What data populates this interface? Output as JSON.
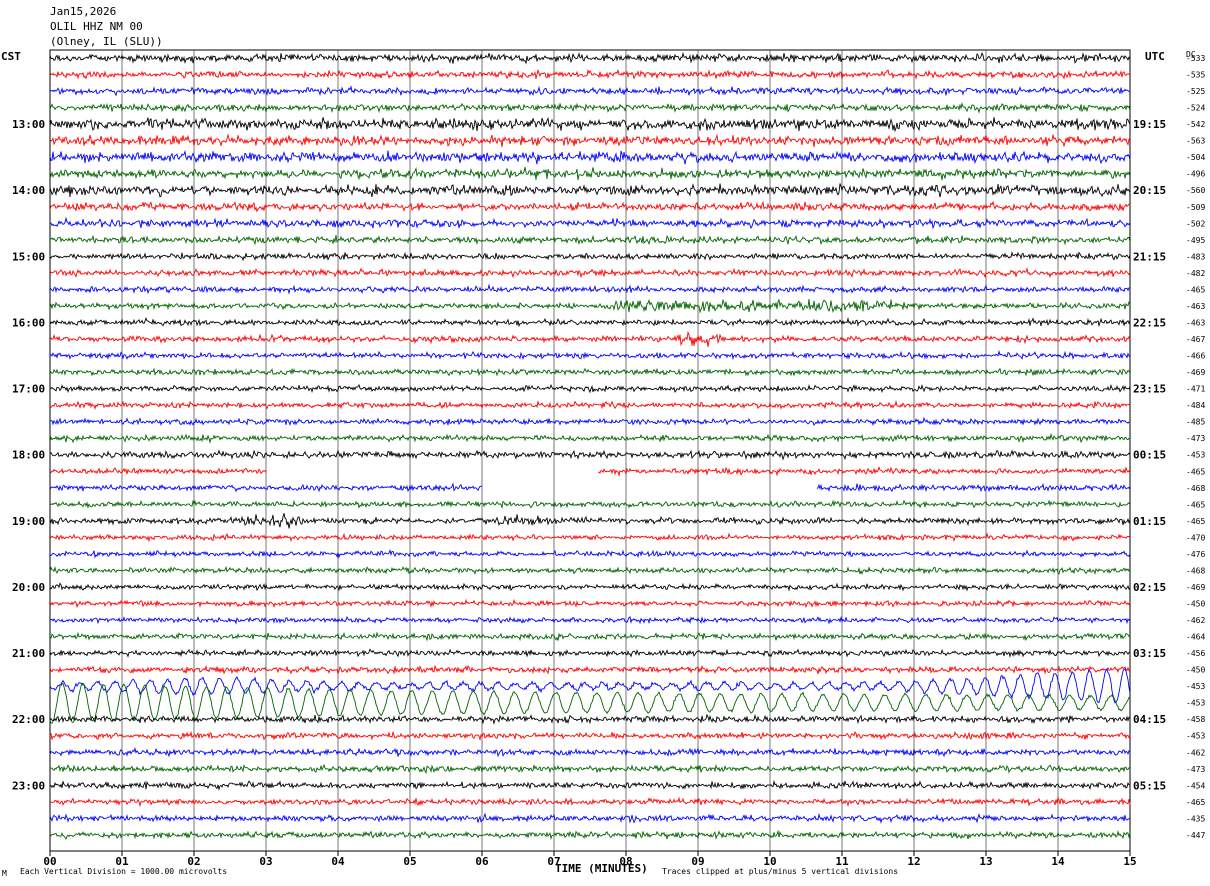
{
  "header": {
    "date": "Jan15,2026",
    "station": "OLIL HHZ NM 00",
    "location": "(Olney, IL (SLU))"
  },
  "left_tz": "CST",
  "right_tz": "UTC",
  "dc_label": "DC",
  "footer": {
    "scale_note": "Each Vertical Division = 1000.00 microvolts",
    "clip_note": "Traces clipped at plus/minus 5 vertical divisions",
    "corner_mark": "M"
  },
  "colors": {
    "cycle": [
      "#000000",
      "#ff0000",
      "#0000ff",
      "#006400"
    ],
    "grid": "#000000"
  },
  "chart_data": {
    "type": "line",
    "title": "",
    "xlabel": "TIME (MINUTES)",
    "x_ticks": [
      "00",
      "01",
      "02",
      "03",
      "04",
      "05",
      "06",
      "07",
      "08",
      "09",
      "10",
      "11",
      "12",
      "13",
      "14",
      "15"
    ],
    "xlim": [
      0,
      15
    ],
    "left_hour_labels": [
      "13:00",
      "14:00",
      "15:00",
      "16:00",
      "17:00",
      "18:00",
      "19:00",
      "20:00",
      "21:00",
      "22:00",
      "23:00"
    ],
    "right_hour_labels": [
      "19:15",
      "20:15",
      "21:15",
      "22:15",
      "23:15",
      "00:15",
      "01:15",
      "02:15",
      "03:15",
      "04:15",
      "05:15"
    ],
    "traces_per_hour": 4,
    "dc_offsets": [
      "-533",
      "-535",
      "-525",
      "-524",
      "-542",
      "-563",
      "-504",
      "-496",
      "-560",
      "-509",
      "-502",
      "-495",
      "-483",
      "-482",
      "-465",
      "-463",
      "-463",
      "-467",
      "-466",
      "-469",
      "-471",
      "-484",
      "-485",
      "-473",
      "-453",
      "-465",
      "-468",
      "-465",
      "-465",
      "-470",
      "-476",
      "-468",
      "-469",
      "-450",
      "-462",
      "-464",
      "-456",
      "-450",
      "-453",
      "-453",
      "-458",
      "-453",
      "-462",
      "-473",
      "-454",
      "-465",
      "-435",
      "-447"
    ],
    "data_gaps": [
      {
        "trace": 25,
        "start_min": 3.0,
        "end_min": 7.6
      },
      {
        "trace": 26,
        "start_min": 6.0,
        "end_min": 10.65
      }
    ],
    "events": [
      {
        "trace": 38,
        "description": "large teleseismic surface waves",
        "start_min": 0.0,
        "end_min": 15.0
      },
      {
        "trace": 39,
        "description": "large teleseismic surface waves",
        "start_min": 0.0,
        "end_min": 15.0
      }
    ]
  }
}
